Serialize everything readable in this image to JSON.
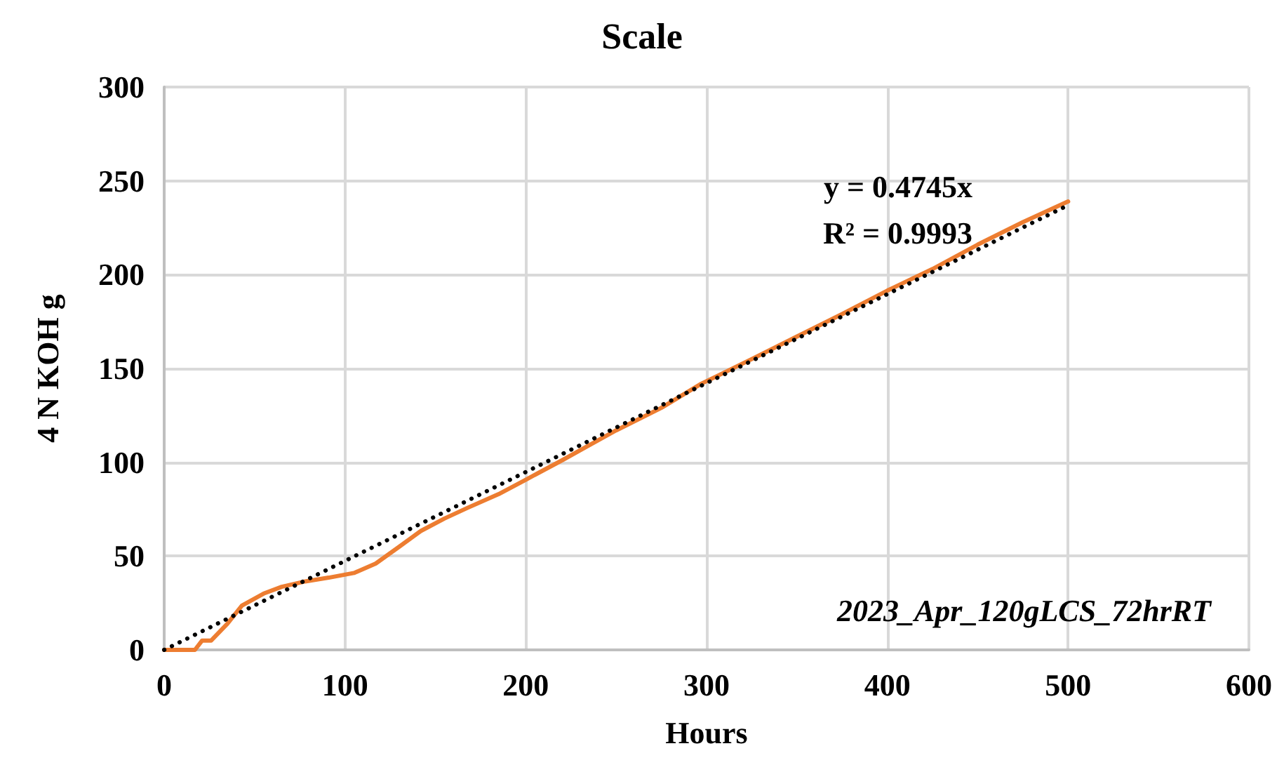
{
  "chart_data": {
    "type": "line",
    "title": "Scale",
    "xlabel": "Hours",
    "ylabel": "4 N KOH g",
    "xlim": [
      0,
      600
    ],
    "xticks": [
      0,
      100,
      200,
      300,
      400,
      500,
      600
    ],
    "ylim": [
      0,
      300
    ],
    "yticks": [
      0,
      50,
      100,
      150,
      200,
      250,
      300
    ],
    "grid": true,
    "marker": "none",
    "series": [
      {
        "color": "#ed7d31",
        "line_style": "solid",
        "x": [
          0,
          17,
          21,
          26,
          35,
          43,
          55,
          65,
          78,
          91,
          105,
          117,
          130,
          142,
          155,
          168,
          185,
          200,
          220,
          233,
          250,
          275,
          297,
          325,
          350,
          375,
          400,
          425,
          450,
          475,
          500
        ],
        "values": [
          0,
          0,
          5,
          5,
          14,
          23.6,
          30,
          33.6,
          36.5,
          38.5,
          41,
          46,
          55,
          63.4,
          70,
          75.8,
          83,
          90.7,
          101,
          108,
          117,
          129,
          141.8,
          155,
          167,
          179,
          191.5,
          203,
          216,
          228,
          239
        ]
      },
      {
        "type": "line",
        "color": "#000000",
        "line_style": "dotted",
        "x": [
          0,
          500
        ],
        "values": [
          0,
          237
        ]
      }
    ],
    "annotations": [
      "y = 0.4745x",
      "R² = 0.9993",
      "2023_Apr_120gLCS_72hrRT"
    ]
  }
}
